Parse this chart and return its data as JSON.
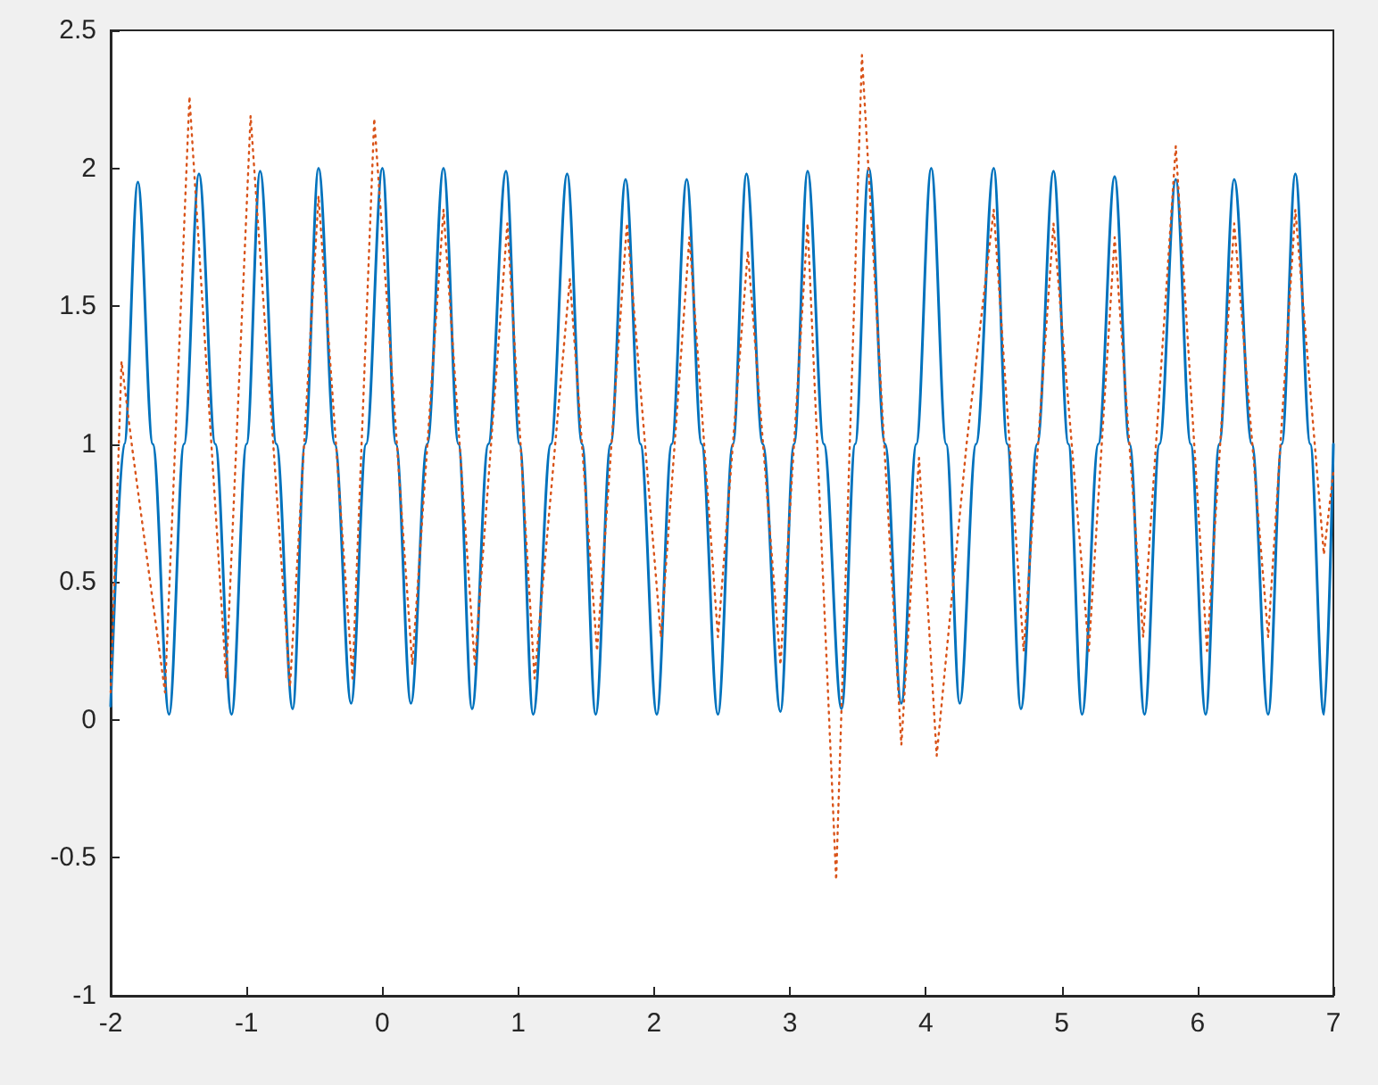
{
  "chart_data": {
    "type": "line",
    "xlim": [
      -2,
      7
    ],
    "xticks": [
      -2,
      -1,
      0,
      1,
      2,
      3,
      4,
      5,
      6,
      7
    ],
    "ylim": [
      -1,
      2.5
    ],
    "yticks": [
      -1,
      -0.5,
      0,
      0.5,
      1,
      1.5,
      2,
      2.5
    ],
    "series": [
      {
        "color": "#0072bd",
        "line_style": "solid",
        "x": [
          -2.0,
          -1.9,
          -1.8,
          -1.69,
          -1.57,
          -1.46,
          -1.35,
          -1.23,
          -1.11,
          -1.0,
          -0.9,
          -0.78,
          -0.66,
          -0.57,
          -0.47,
          -0.35,
          -0.23,
          -0.12,
          0.0,
          0.1,
          0.21,
          0.33,
          0.45,
          0.56,
          0.66,
          0.78,
          0.91,
          1.01,
          1.11,
          1.24,
          1.36,
          1.47,
          1.57,
          1.68,
          1.79,
          1.9,
          2.02,
          2.13,
          2.24,
          2.35,
          2.47,
          2.58,
          2.68,
          2.8,
          2.93,
          3.03,
          3.13,
          3.25,
          3.38,
          3.48,
          3.58,
          3.7,
          3.82,
          3.93,
          4.04,
          4.15,
          4.25,
          4.37,
          4.5,
          4.6,
          4.7,
          4.82,
          4.94,
          5.05,
          5.15,
          5.27,
          5.39,
          5.5,
          5.61,
          5.72,
          5.84,
          5.95,
          6.06,
          6.16,
          6.27,
          6.4,
          6.52,
          6.62,
          6.72,
          6.83,
          6.93,
          7.0
        ],
        "values": [
          0.05,
          1,
          1.95,
          1,
          0.02,
          1,
          1.98,
          1,
          0.02,
          1,
          1.99,
          1,
          0.04,
          1,
          2.0,
          1,
          0.06,
          1,
          2.0,
          1,
          0.06,
          1,
          2.0,
          1,
          0.04,
          1,
          1.99,
          1,
          0.02,
          1,
          1.98,
          1,
          0.02,
          1,
          1.96,
          1,
          0.02,
          1,
          1.96,
          1,
          0.02,
          1,
          1.98,
          1,
          0.03,
          1,
          1.99,
          1,
          0.04,
          1,
          2.0,
          1,
          0.06,
          1,
          2.0,
          1,
          0.06,
          1,
          2.0,
          1,
          0.04,
          1,
          1.99,
          1,
          0.02,
          1,
          1.97,
          1,
          0.02,
          1,
          1.96,
          1,
          0.02,
          1,
          1.96,
          1,
          0.02,
          1,
          1.98,
          1,
          0.02,
          1.0
        ]
      },
      {
        "color": "#d95319",
        "line_style": "dotted",
        "x": [
          -2.0,
          -1.92,
          -1.84,
          -1.6,
          -1.42,
          -1.15,
          -0.97,
          -0.68,
          -0.47,
          -0.22,
          -0.06,
          0.22,
          0.45,
          0.68,
          0.92,
          1.12,
          1.38,
          1.58,
          1.8,
          2.05,
          2.26,
          2.47,
          2.69,
          2.93,
          3.13,
          3.34,
          3.53,
          3.82,
          3.95,
          4.08,
          4.3,
          4.5,
          4.72,
          4.94,
          5.2,
          5.39,
          5.6,
          5.84,
          6.07,
          6.27,
          6.52,
          6.72,
          6.93,
          7.0
        ],
        "values": [
          0.1,
          1.3,
          0.98,
          0.1,
          2.26,
          0.15,
          2.19,
          0.12,
          1.9,
          0.15,
          2.18,
          0.2,
          1.85,
          0.2,
          1.8,
          0.15,
          1.6,
          0.25,
          1.8,
          0.3,
          1.75,
          0.3,
          1.7,
          0.2,
          1.8,
          -0.58,
          2.41,
          -0.09,
          0.95,
          -0.13,
          1.0,
          1.85,
          0.25,
          1.8,
          0.25,
          1.75,
          0.3,
          2.08,
          0.25,
          1.8,
          0.3,
          1.85,
          0.6,
          0.9
        ]
      }
    ]
  }
}
